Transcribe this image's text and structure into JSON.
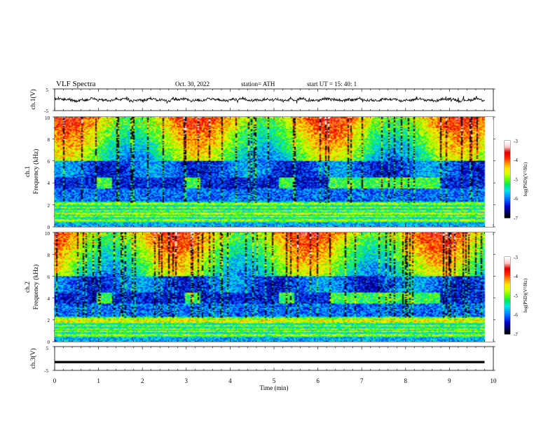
{
  "header": {
    "title": "VLF  Spectra",
    "date": "Oct. 30, 2022",
    "station": "station= ATH",
    "start": "start  UT  =    15: 40: 1"
  },
  "chart_data": [
    {
      "type": "line",
      "ylabel": "ch.1(V)",
      "ylim": [
        -5,
        5
      ],
      "yticks": [
        "5",
        "-5"
      ],
      "xlim": [
        0,
        10
      ],
      "x_end_min": 9.8,
      "baseline_v": 0,
      "fluctuation_v": 1
    },
    {
      "type": "heatmap",
      "ylabel": "ch.1\nFrequency (kHz)",
      "yticks": [
        "10",
        "8",
        "6",
        "4",
        "2",
        "0"
      ],
      "ylim": [
        0,
        10
      ],
      "xlim": [
        0,
        10
      ],
      "colorbar": {
        "label": "log(PSD)(V²/Hz)",
        "ticks": [
          "-3",
          "-4",
          "-5",
          "-6",
          "-7"
        ],
        "range": [
          -7,
          -3
        ]
      },
      "bursts_min": [
        [
          0.97,
          1.3
        ],
        [
          2.98,
          3.33
        ],
        [
          5.12,
          5.45
        ],
        [
          6.27,
          8.78
        ]
      ],
      "burst_freq_khz": [
        3.5,
        4.5
      ]
    },
    {
      "type": "heatmap",
      "ylabel": "ch.2\nFrequency (kHz)",
      "yticks": [
        "10",
        "8",
        "6",
        "4",
        "2",
        "0"
      ],
      "ylim": [
        0,
        10
      ],
      "xlim": [
        0,
        10
      ],
      "colorbar": {
        "label": "log(PSD)(V²/Hz)",
        "ticks": [
          "-3",
          "-4",
          "-5",
          "-6",
          "-7"
        ],
        "range": [
          -7,
          -3
        ]
      },
      "bursts_min": [
        [
          0.97,
          1.3
        ],
        [
          2.98,
          3.33
        ],
        [
          5.12,
          5.45
        ],
        [
          6.27,
          8.78
        ]
      ],
      "burst_freq_khz": [
        3.5,
        4.5
      ]
    },
    {
      "type": "line",
      "ylabel": "ch.3(V)",
      "ylim": [
        -5,
        5
      ],
      "yticks": [
        "5",
        "-5"
      ],
      "xlim": [
        0,
        10
      ],
      "x_end_min": 9.8,
      "baseline_v": -1.5,
      "fluctuation_v": 0
    }
  ],
  "xaxis": {
    "label": "Time  (min)",
    "ticks": [
      "0",
      "1",
      "2",
      "3",
      "4",
      "5",
      "6",
      "7",
      "8",
      "9",
      "10"
    ]
  },
  "colors": {
    "colormap": [
      "#000000",
      "#00006e",
      "#0000c8",
      "#0050ff",
      "#00a0ff",
      "#00e6e6",
      "#00e664",
      "#64ff00",
      "#d2ff00",
      "#ffe600",
      "#ff8c00",
      "#ff1e00",
      "#dc0000",
      "#ffc8c8",
      "#ffffff"
    ]
  }
}
